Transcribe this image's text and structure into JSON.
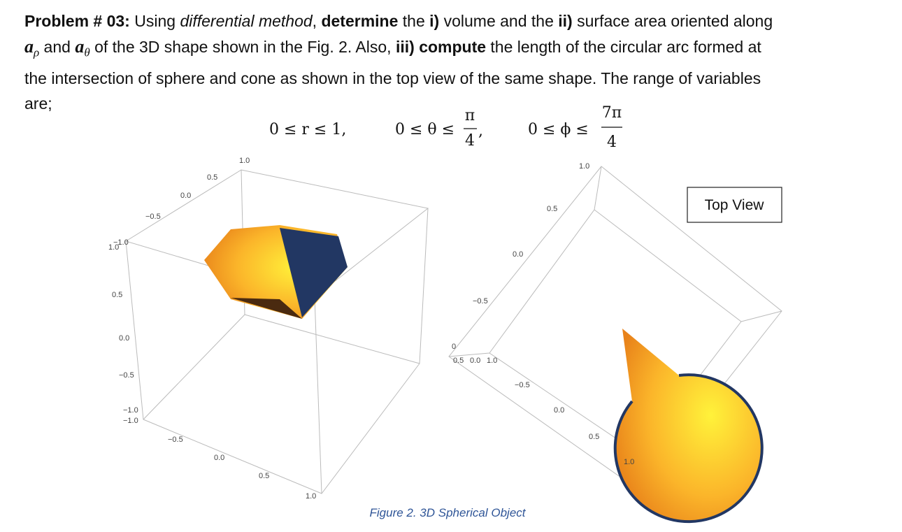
{
  "problem": {
    "runs": [
      "Problem # 03:",
      " Using ",
      "differential method",
      ", ",
      "determine",
      " the ",
      "i)",
      " volume and the ",
      "ii)",
      " surface area oriented along",
      "a",
      "ρ",
      " and ",
      "a",
      "θ",
      " of the 3D shape shown in the Fig. 2. Also, ",
      "iii)",
      " ",
      "compute",
      " the length of the circular arc formed at",
      "the intersection of sphere and cone as shown in the top view of the same shape. The range of variables",
      "are;"
    ],
    "ranges": [
      "0 ≤ r ≤ 1,",
      "0 ≤ θ ≤",
      "π",
      "4",
      ",",
      "0 ≤ ϕ ≤",
      "7π",
      "4"
    ]
  },
  "figure": {
    "left_labels": [
      "1.0",
      "0.5",
      "0.0",
      "−0.5",
      "−1.0",
      "1.0",
      "0.5",
      "0.0",
      "−0.5",
      "−1.0",
      "−1.0",
      "−0.5",
      "0.0",
      "0.5",
      "1.0"
    ],
    "right_labels": [
      "1.0",
      "0.5",
      "0.0",
      "−0.5",
      "0",
      "0.5",
      "0.0",
      "1.0",
      "−0.5",
      "0.0",
      "0.5",
      "1.0"
    ],
    "top_view": "Top View",
    "caption": "Figure 2. 3D Spherical Object"
  }
}
